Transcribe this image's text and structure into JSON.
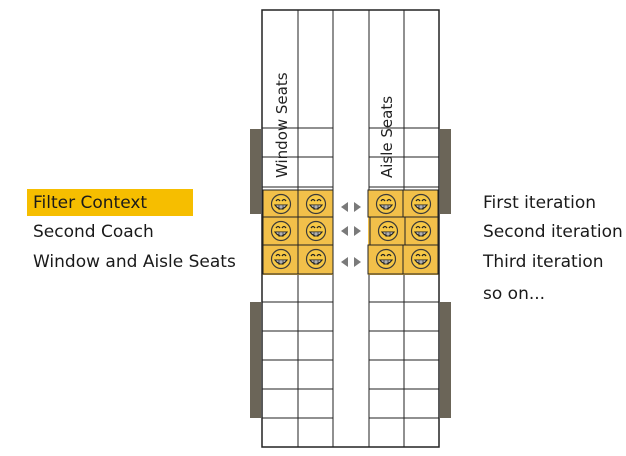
{
  "left_labels": {
    "filter_context": "Filter Context",
    "second_coach": "Second Coach",
    "window_aisle": "Window and Aisle Seats"
  },
  "right_labels": {
    "first": "First iteration",
    "second": "Second iteration",
    "third": "Third iteration",
    "so_on": "so on..."
  },
  "coach": {
    "window_label": "Window Seats",
    "aisle_label": "Aisle Seats"
  },
  "colors": {
    "highlight": "#f6be00",
    "seat_fill": "#f2c04a",
    "side_bar": "#6b6558",
    "arrow": "#7a7a7a"
  },
  "icons": {
    "passenger": "grinning-face-icon",
    "arrow": "double-arrow-icon"
  }
}
